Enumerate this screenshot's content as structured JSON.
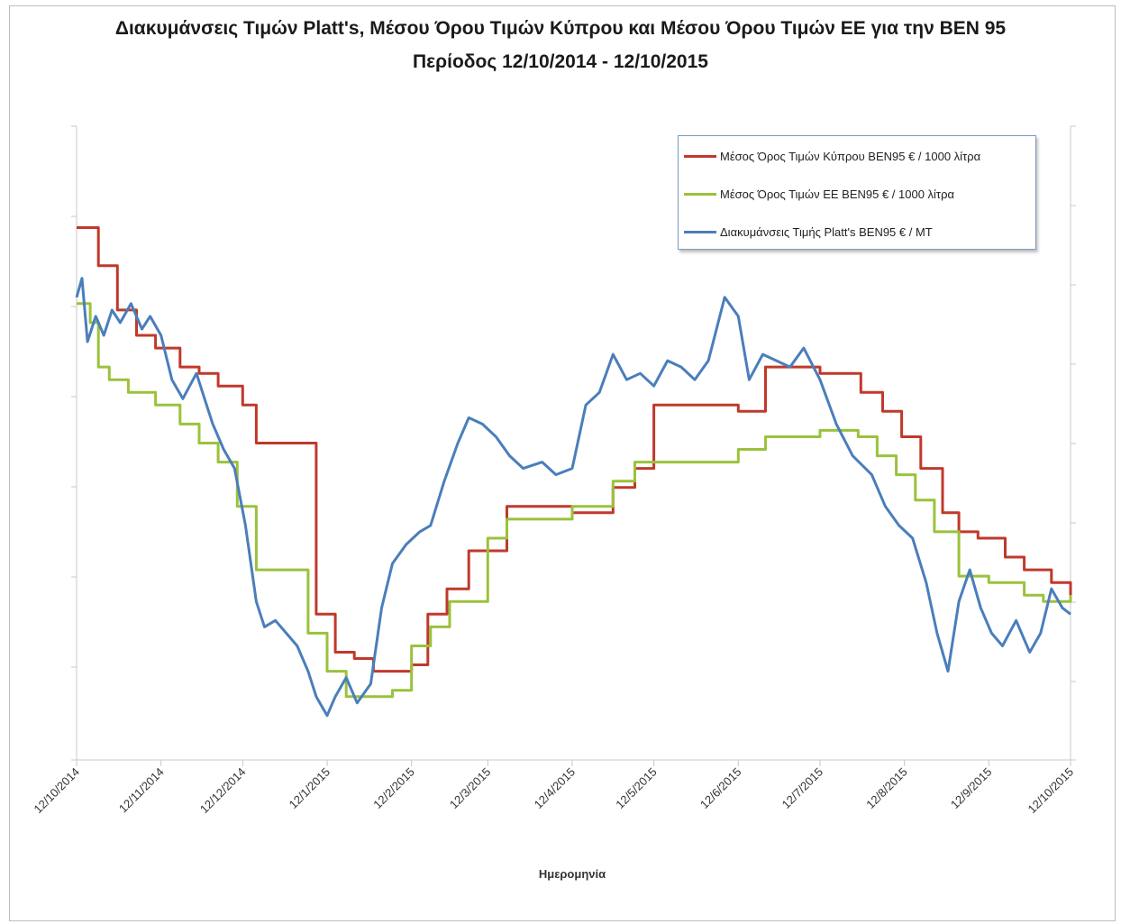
{
  "chart_data": {
    "type": "line",
    "title": "Διακυμάνσεις Τιμών Platt's, Μέσου Όρου Τιμών Κύπρου και Μέσου Όρου Τιμών ΕΕ για την ΒΕΝ 95",
    "subtitle": "Περίοδος 12/10/2014 - 12/10/2015",
    "xlabel": "Ημερομηνία",
    "ylabel": "",
    "x_type": "date",
    "xlim": [
      "2014-10-12",
      "2015-10-12"
    ],
    "ylim": [
      0,
      100
    ],
    "grid": false,
    "legend_position": "top-right",
    "x_tick_labels": [
      "12/10/2014",
      "12/11/2014",
      "12/12/2014",
      "12/1/2015",
      "12/2/2015",
      "12/3/2015",
      "12/4/2015",
      "12/5/2015",
      "12/6/2015",
      "12/7/2015",
      "12/8/2015",
      "12/9/2015",
      "12/10/2015"
    ],
    "x_ticks": [
      "2014-10-12",
      "2014-11-12",
      "2014-12-12",
      "2015-01-12",
      "2015-02-12",
      "2015-03-12",
      "2015-04-12",
      "2015-05-12",
      "2015-06-12",
      "2015-07-12",
      "2015-08-12",
      "2015-09-12",
      "2015-10-12"
    ],
    "series": [
      {
        "name": "Μέσος Όρος Τιμών Κύπρου ΒΕΝ95 € / 1000 λίτρα",
        "color": "#c0392b",
        "step": true,
        "points": [
          [
            "2014-10-12",
            84
          ],
          [
            "2014-10-20",
            78
          ],
          [
            "2014-10-27",
            71
          ],
          [
            "2014-11-03",
            67
          ],
          [
            "2014-11-10",
            65
          ],
          [
            "2014-11-19",
            62
          ],
          [
            "2014-11-26",
            61
          ],
          [
            "2014-12-03",
            59
          ],
          [
            "2014-12-12",
            56
          ],
          [
            "2014-12-17",
            50
          ],
          [
            "2014-12-31",
            50
          ],
          [
            "2015-01-08",
            23
          ],
          [
            "2015-01-15",
            17
          ],
          [
            "2015-01-22",
            16
          ],
          [
            "2015-01-29",
            14
          ],
          [
            "2015-02-12",
            15
          ],
          [
            "2015-02-18",
            23
          ],
          [
            "2015-02-25",
            27
          ],
          [
            "2015-03-05",
            33
          ],
          [
            "2015-03-19",
            40
          ],
          [
            "2015-04-12",
            39
          ],
          [
            "2015-04-27",
            43
          ],
          [
            "2015-05-05",
            46
          ],
          [
            "2015-05-12",
            56
          ],
          [
            "2015-06-12",
            55
          ],
          [
            "2015-06-22",
            62
          ],
          [
            "2015-07-12",
            61
          ],
          [
            "2015-07-27",
            58
          ],
          [
            "2015-08-04",
            55
          ],
          [
            "2015-08-11",
            51
          ],
          [
            "2015-08-18",
            46
          ],
          [
            "2015-08-26",
            39
          ],
          [
            "2015-09-01",
            36
          ],
          [
            "2015-09-08",
            35
          ],
          [
            "2015-09-18",
            32
          ],
          [
            "2015-09-25",
            30
          ],
          [
            "2015-10-05",
            28
          ],
          [
            "2015-10-12",
            26
          ]
        ]
      },
      {
        "name": "Μέσος Όρος Τιμών ΕΕ ΒΕΝ95 € / 1000 λίτρα",
        "color": "#9ac23c",
        "step": true,
        "points": [
          [
            "2014-10-12",
            72
          ],
          [
            "2014-10-17",
            69
          ],
          [
            "2014-10-20",
            62
          ],
          [
            "2014-10-24",
            60
          ],
          [
            "2014-10-31",
            58
          ],
          [
            "2014-11-10",
            56
          ],
          [
            "2014-11-19",
            53
          ],
          [
            "2014-11-26",
            50
          ],
          [
            "2014-12-03",
            47
          ],
          [
            "2014-12-10",
            40
          ],
          [
            "2014-12-17",
            30
          ],
          [
            "2015-01-05",
            20
          ],
          [
            "2015-01-12",
            14
          ],
          [
            "2015-01-19",
            10
          ],
          [
            "2015-02-05",
            11
          ],
          [
            "2015-02-12",
            18
          ],
          [
            "2015-02-19",
            21
          ],
          [
            "2015-02-26",
            25
          ],
          [
            "2015-03-12",
            35
          ],
          [
            "2015-03-19",
            38
          ],
          [
            "2015-04-12",
            40
          ],
          [
            "2015-04-27",
            44
          ],
          [
            "2015-05-05",
            47
          ],
          [
            "2015-05-19",
            47
          ],
          [
            "2015-06-12",
            49
          ],
          [
            "2015-06-22",
            51
          ],
          [
            "2015-07-12",
            52
          ],
          [
            "2015-07-26",
            51
          ],
          [
            "2015-08-02",
            48
          ],
          [
            "2015-08-09",
            45
          ],
          [
            "2015-08-16",
            41
          ],
          [
            "2015-08-23",
            36
          ],
          [
            "2015-09-01",
            29
          ],
          [
            "2015-09-12",
            28
          ],
          [
            "2015-09-25",
            26
          ],
          [
            "2015-10-02",
            25
          ],
          [
            "2015-10-12",
            26
          ]
        ]
      },
      {
        "name": "Διακυμάνσεις Τιμής Platt's ΒΕΝ95 € / ΜΤ",
        "color": "#4a7ebb",
        "step": false,
        "points": [
          [
            "2014-10-12",
            73
          ],
          [
            "2014-10-14",
            76
          ],
          [
            "2014-10-16",
            66
          ],
          [
            "2014-10-19",
            70
          ],
          [
            "2014-10-22",
            67
          ],
          [
            "2014-10-25",
            71
          ],
          [
            "2014-10-28",
            69
          ],
          [
            "2014-11-01",
            72
          ],
          [
            "2014-11-05",
            68
          ],
          [
            "2014-11-08",
            70
          ],
          [
            "2014-11-12",
            67
          ],
          [
            "2014-11-16",
            60
          ],
          [
            "2014-11-20",
            57
          ],
          [
            "2014-11-25",
            61
          ],
          [
            "2014-11-28",
            57
          ],
          [
            "2014-12-01",
            53
          ],
          [
            "2014-12-05",
            49
          ],
          [
            "2014-12-09",
            46
          ],
          [
            "2014-12-13",
            37
          ],
          [
            "2014-12-17",
            25
          ],
          [
            "2014-12-20",
            21
          ],
          [
            "2014-12-24",
            22
          ],
          [
            "2014-12-28",
            20
          ],
          [
            "2015-01-01",
            18
          ],
          [
            "2015-01-05",
            14
          ],
          [
            "2015-01-08",
            10
          ],
          [
            "2015-01-12",
            7
          ],
          [
            "2015-01-15",
            10
          ],
          [
            "2015-01-19",
            13
          ],
          [
            "2015-01-23",
            9
          ],
          [
            "2015-01-28",
            12
          ],
          [
            "2015-02-01",
            24
          ],
          [
            "2015-02-05",
            31
          ],
          [
            "2015-02-10",
            34
          ],
          [
            "2015-02-15",
            36
          ],
          [
            "2015-02-19",
            37
          ],
          [
            "2015-02-24",
            44
          ],
          [
            "2015-03-01",
            50
          ],
          [
            "2015-03-05",
            54
          ],
          [
            "2015-03-10",
            53
          ],
          [
            "2015-03-15",
            51
          ],
          [
            "2015-03-20",
            48
          ],
          [
            "2015-03-25",
            46
          ],
          [
            "2015-04-01",
            47
          ],
          [
            "2015-04-06",
            45
          ],
          [
            "2015-04-12",
            46
          ],
          [
            "2015-04-17",
            56
          ],
          [
            "2015-04-22",
            58
          ],
          [
            "2015-04-27",
            64
          ],
          [
            "2015-05-02",
            60
          ],
          [
            "2015-05-07",
            61
          ],
          [
            "2015-05-12",
            59
          ],
          [
            "2015-05-17",
            63
          ],
          [
            "2015-05-22",
            62
          ],
          [
            "2015-05-27",
            60
          ],
          [
            "2015-06-01",
            63
          ],
          [
            "2015-06-07",
            73
          ],
          [
            "2015-06-12",
            70
          ],
          [
            "2015-06-16",
            60
          ],
          [
            "2015-06-21",
            64
          ],
          [
            "2015-06-26",
            63
          ],
          [
            "2015-07-01",
            62
          ],
          [
            "2015-07-06",
            65
          ],
          [
            "2015-07-12",
            60
          ],
          [
            "2015-07-18",
            53
          ],
          [
            "2015-07-24",
            48
          ],
          [
            "2015-07-31",
            45
          ],
          [
            "2015-08-05",
            40
          ],
          [
            "2015-08-10",
            37
          ],
          [
            "2015-08-15",
            35
          ],
          [
            "2015-08-20",
            28
          ],
          [
            "2015-08-24",
            20
          ],
          [
            "2015-08-28",
            14
          ],
          [
            "2015-09-01",
            25
          ],
          [
            "2015-09-05",
            30
          ],
          [
            "2015-09-09",
            24
          ],
          [
            "2015-09-13",
            20
          ],
          [
            "2015-09-17",
            18
          ],
          [
            "2015-09-22",
            22
          ],
          [
            "2015-09-27",
            17
          ],
          [
            "2015-10-01",
            20
          ],
          [
            "2015-10-05",
            27
          ],
          [
            "2015-10-09",
            24
          ],
          [
            "2015-10-12",
            23
          ]
        ]
      }
    ]
  }
}
